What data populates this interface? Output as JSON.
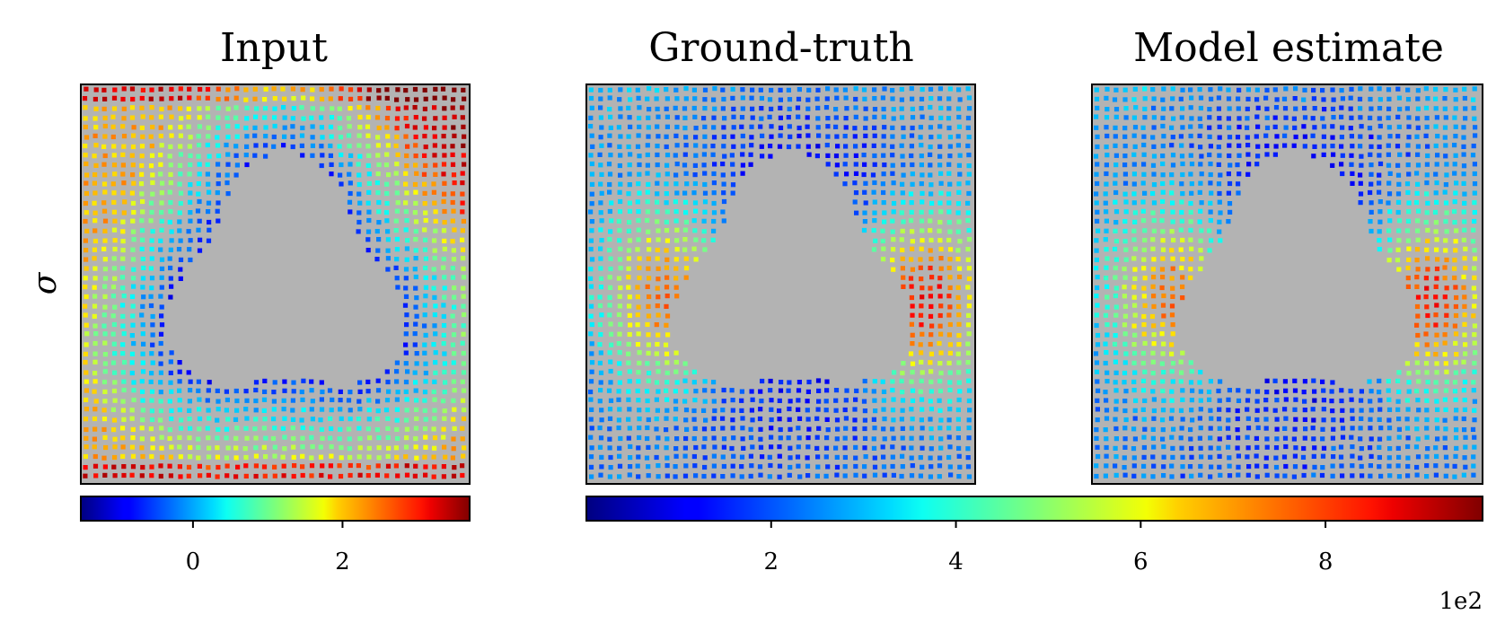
{
  "chart_data": [
    {
      "type": "heatmap",
      "title": "Input",
      "ylabel": "σ",
      "colormap": "jet",
      "mask_color": "#b3b3b3",
      "colorbar": {
        "range": [
          -1.5,
          3.7
        ],
        "ticks": [
          0,
          2
        ],
        "tick_labels": [
          "0",
          "2"
        ],
        "offset_label": ""
      }
    },
    {
      "type": "heatmap",
      "title": "Ground-truth",
      "colormap": "jet",
      "mask_color": "#b3b3b3",
      "colorbar_shared": true
    },
    {
      "type": "heatmap",
      "title": "Model estimate",
      "colormap": "jet",
      "mask_color": "#b3b3b3",
      "colorbar_shared": true
    }
  ],
  "shared_colorbar": {
    "range": [
      0,
      970
    ],
    "ticks": [
      200,
      400,
      600,
      800
    ],
    "tick_labels": [
      "2",
      "4",
      "6",
      "8"
    ],
    "offset_label": "1e2"
  }
}
